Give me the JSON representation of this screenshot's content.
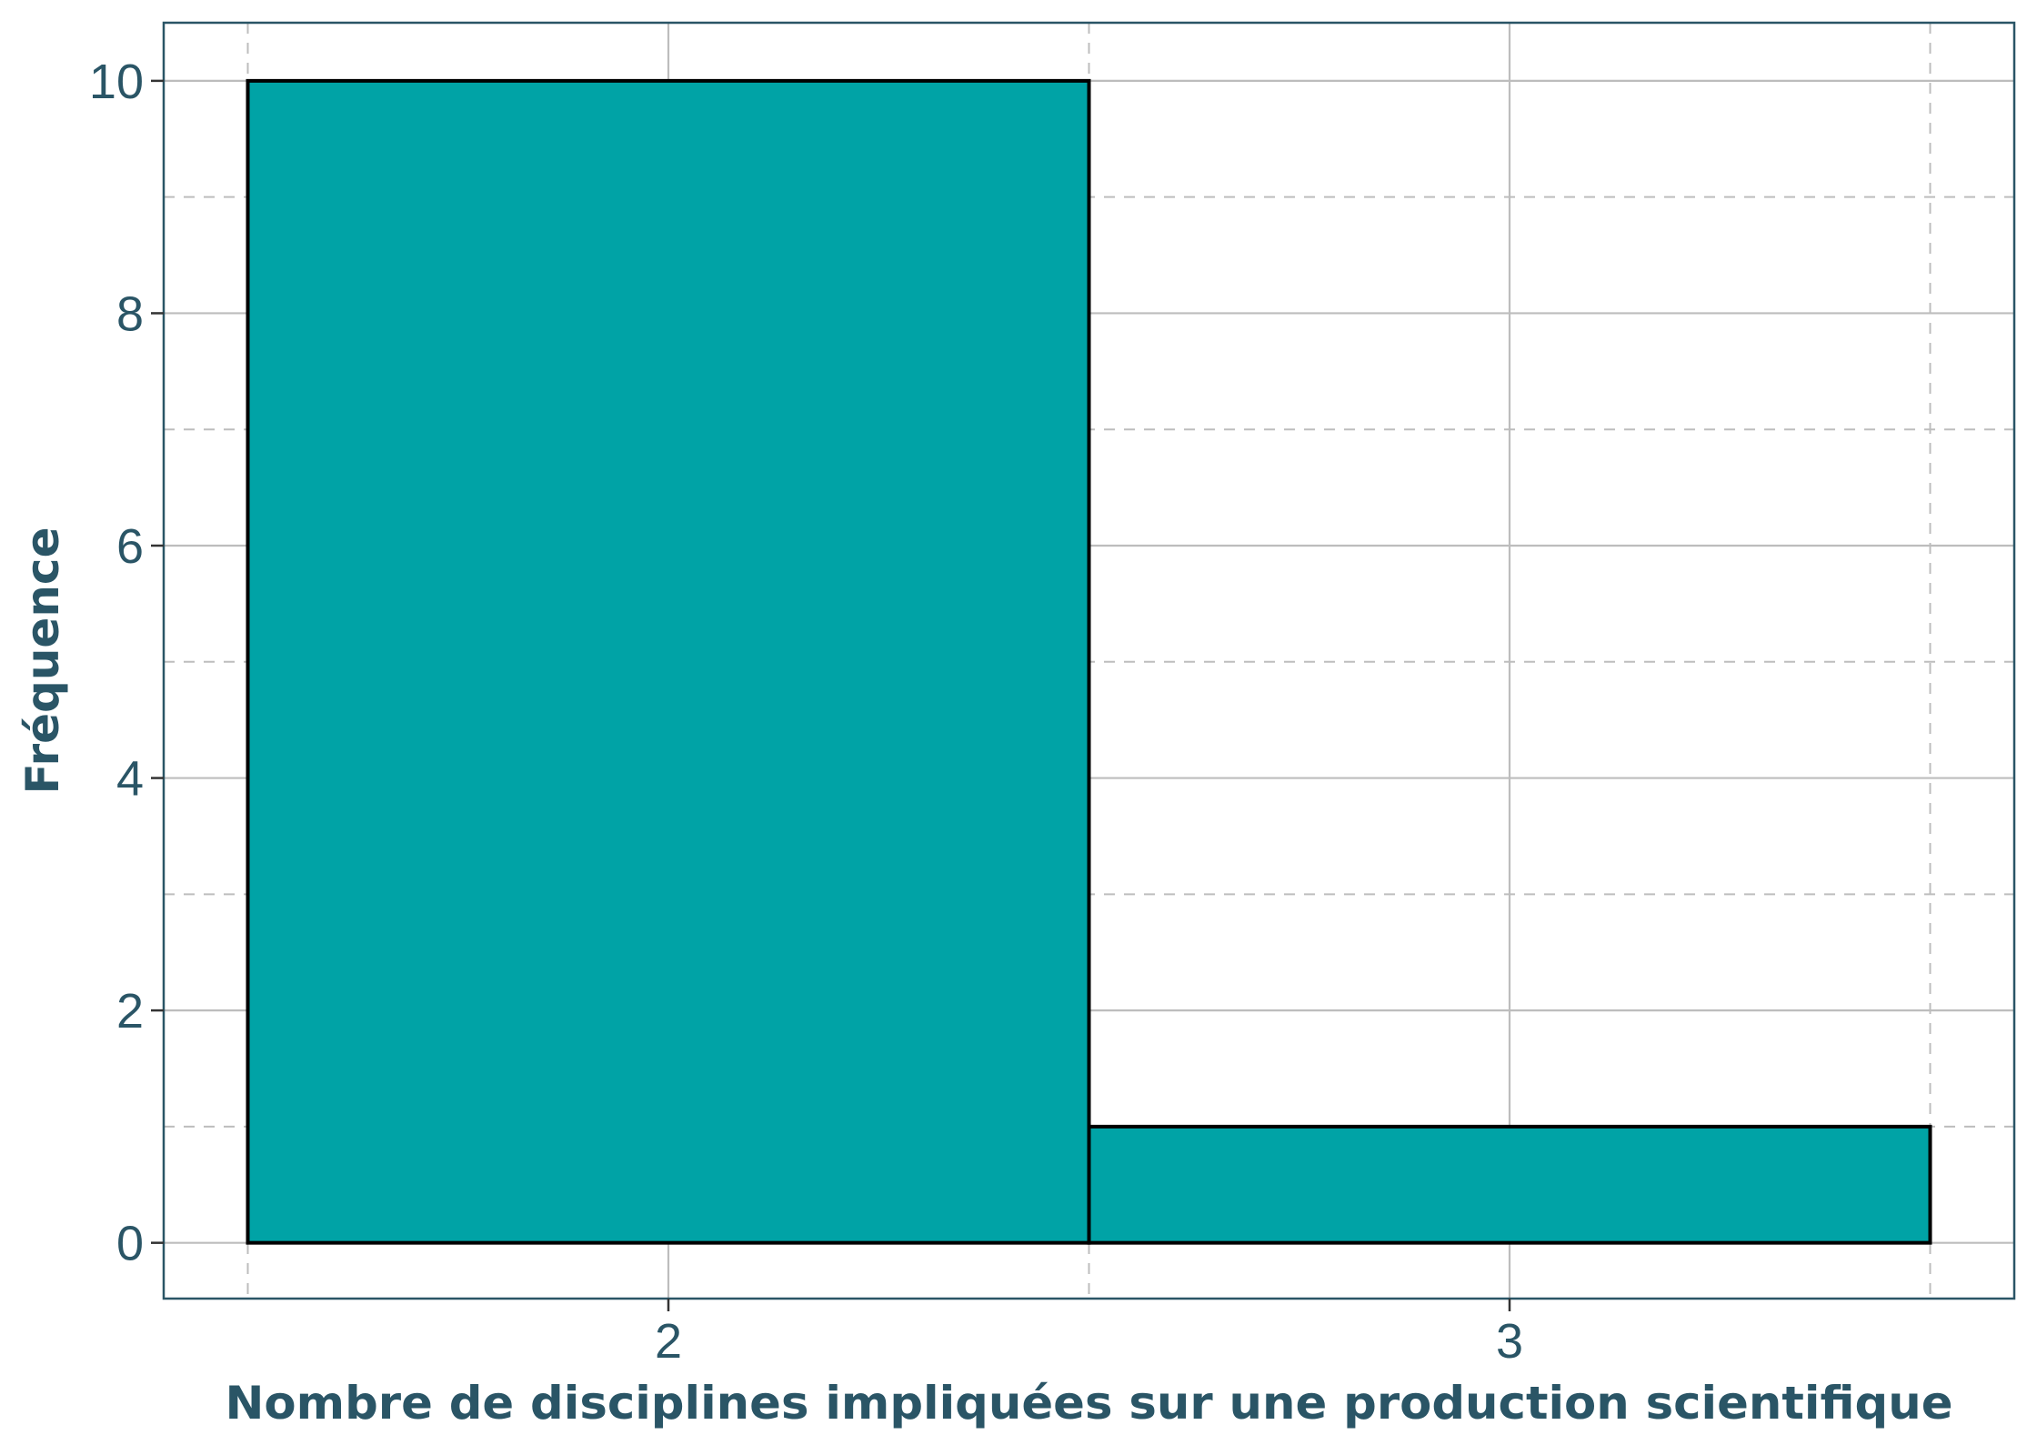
{
  "chart_data": {
    "type": "bar",
    "title": "",
    "xlabel": "Nombre de disciplines impliquées sur une production scientifique",
    "ylabel": "Fréquence",
    "categories": [
      "2",
      "3"
    ],
    "values": [
      10,
      1
    ],
    "bins": [
      {
        "label": "2",
        "start": 1.5,
        "end": 2.5,
        "count": 10
      },
      {
        "label": "3",
        "start": 2.5,
        "end": 3.5,
        "count": 1
      }
    ],
    "xlim": [
      1.4,
      3.6
    ],
    "ylim": [
      -0.48,
      10.5
    ],
    "yticks": [
      0,
      2,
      4,
      6,
      8,
      10
    ],
    "ytick_labels": [
      "0",
      "2",
      "4",
      "6",
      "8",
      "10"
    ],
    "xticks": [
      2,
      3
    ],
    "xtick_labels": [
      "2",
      "3"
    ],
    "grid": true,
    "bar_color": "#00a3a6",
    "bar_edge_color": "#000000",
    "text_color": "#2a5566",
    "panel_border_color": "#2a5566",
    "grid_color": "#bdbdbd"
  }
}
